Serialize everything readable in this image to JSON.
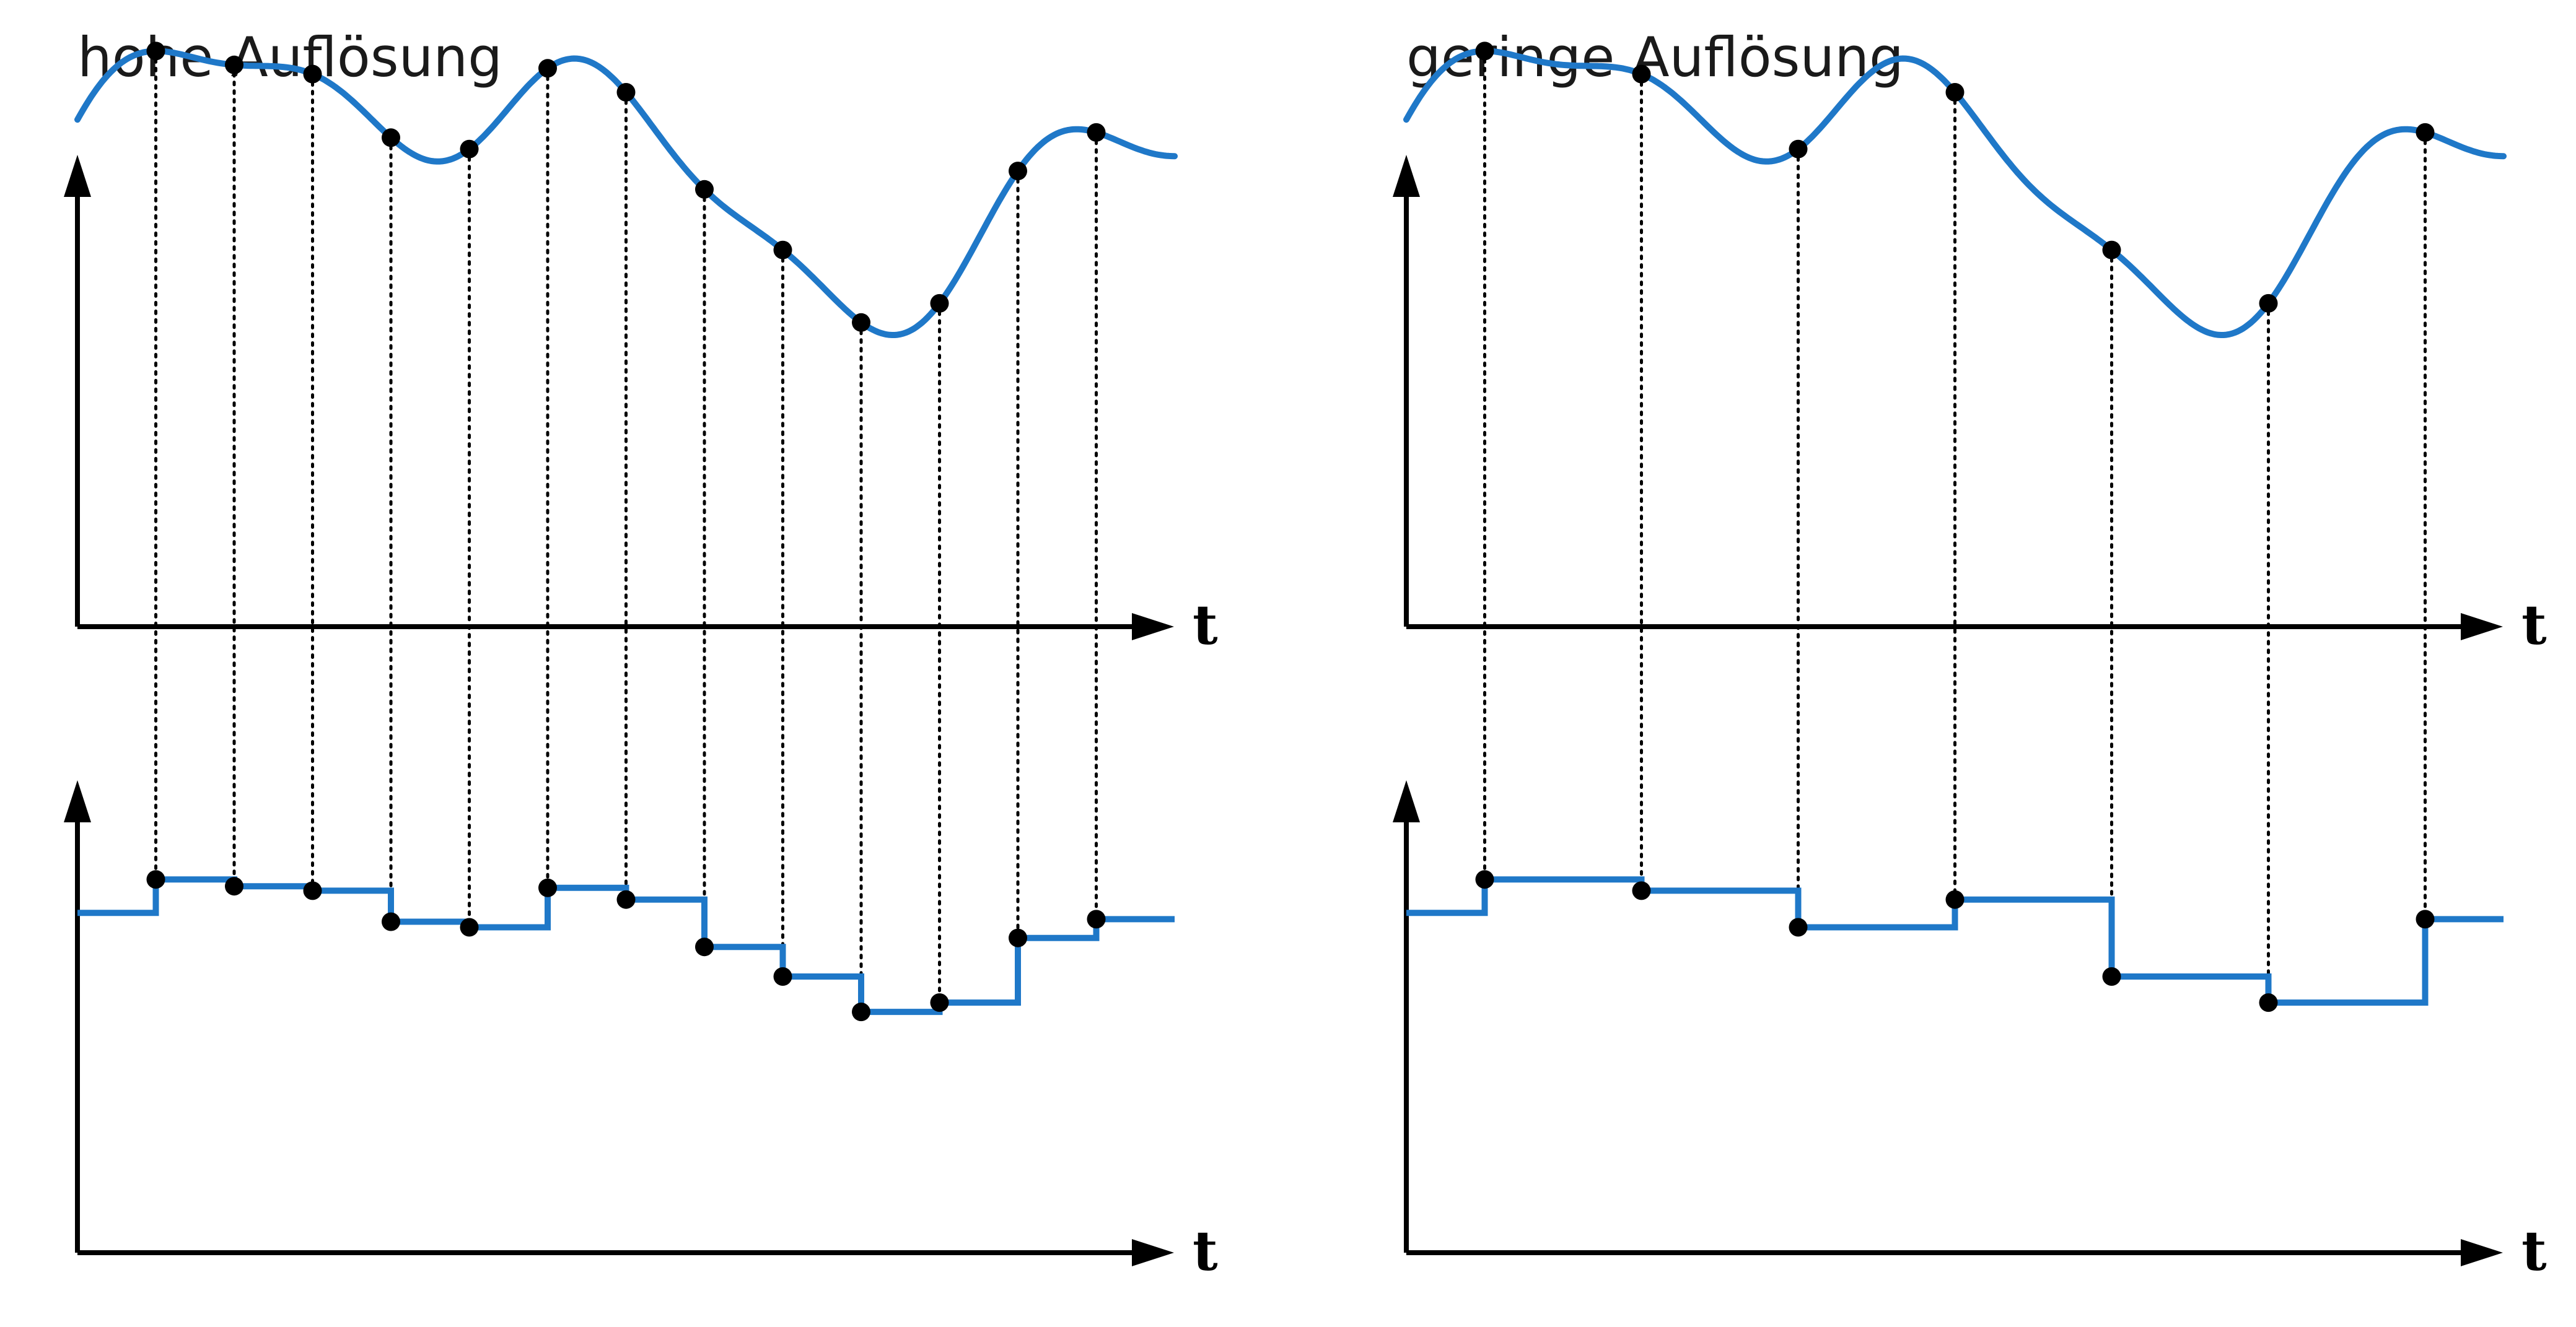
{
  "panels": [
    {
      "id": "high",
      "title": "hohe Auflösung",
      "axis_label": "t",
      "sample_times": [
        0.5,
        1,
        1.5,
        2,
        2.5,
        3,
        3.5,
        4,
        4.5,
        5,
        5.5,
        6,
        6.5
      ]
    },
    {
      "id": "low",
      "title": "geringe Auflösung",
      "axis_label": "t",
      "sample_times": [
        0.5,
        1.5,
        2.5,
        3.5,
        4.5,
        5.5,
        6.5
      ]
    }
  ],
  "colors": {
    "signal": "#1f78c8",
    "axis": "#000000",
    "sample": "#000000"
  }
}
